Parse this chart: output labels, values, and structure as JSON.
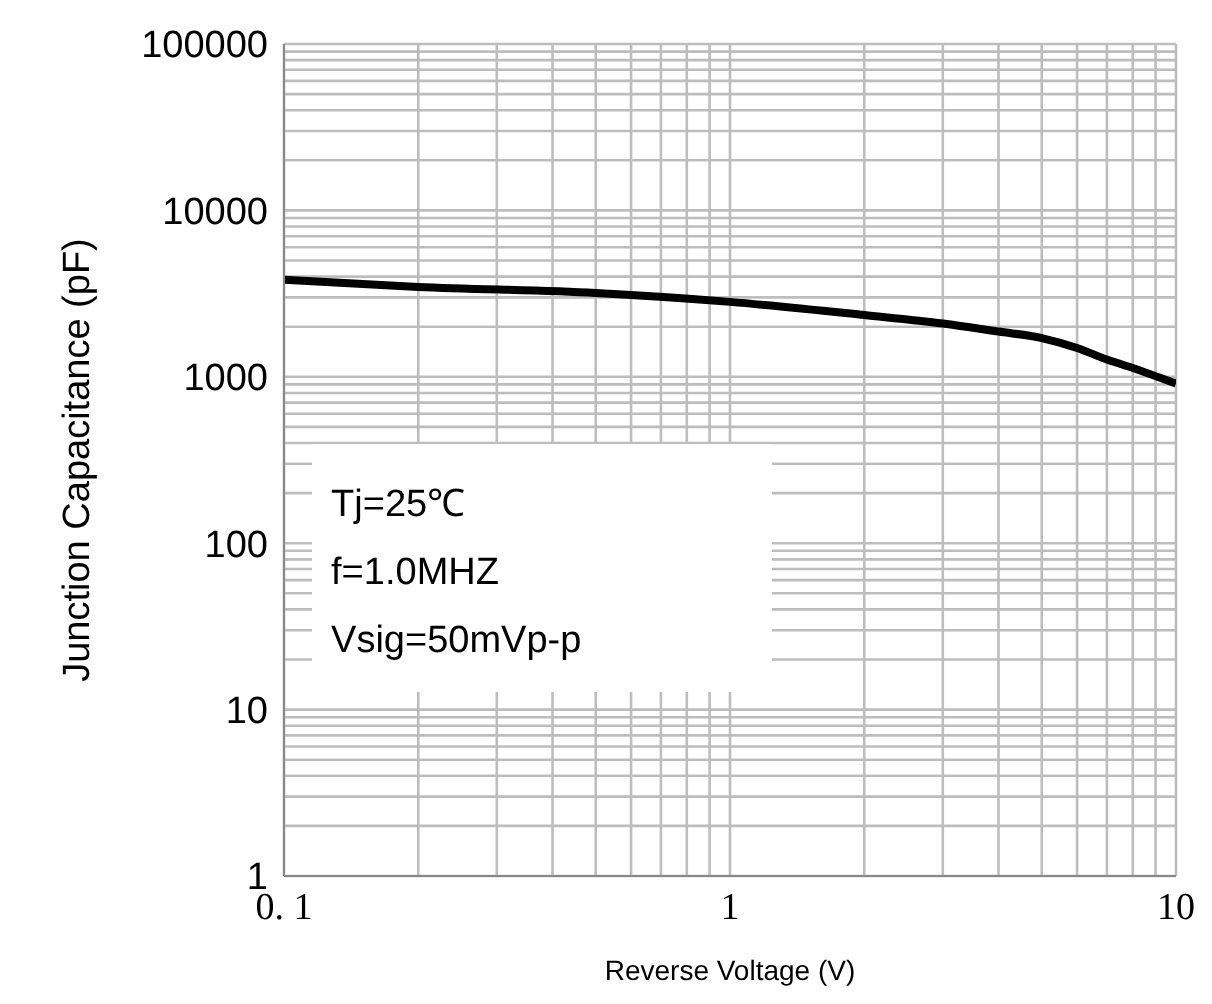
{
  "chart_data": {
    "type": "line",
    "xlabel": "Reverse Voltage (V)",
    "ylabel": "Junction Capacitance (pF)",
    "log": "xy",
    "grid": true,
    "marker": "none",
    "line_style": "solid",
    "xlim": [
      0.1,
      10
    ],
    "xticks": [
      {
        "value": 0.1,
        "label": "0. 1"
      },
      1,
      10
    ],
    "ylim": [
      1,
      100000
    ],
    "yticks": [
      1,
      10,
      100,
      1000,
      10000,
      100000
    ],
    "annotations": [
      "Tj=25℃",
      "f=1.0MHZ",
      "Vsig=50mVp-p"
    ],
    "series": [
      {
        "color": "#000000",
        "x": [
          0.1,
          0.2,
          0.5,
          1,
          2,
          3,
          4,
          5,
          6,
          7,
          8,
          10
        ],
        "values": [
          3830,
          3470,
          3190,
          2820,
          2350,
          2090,
          1870,
          1710,
          1490,
          1270,
          1130,
          910
        ]
      }
    ]
  }
}
